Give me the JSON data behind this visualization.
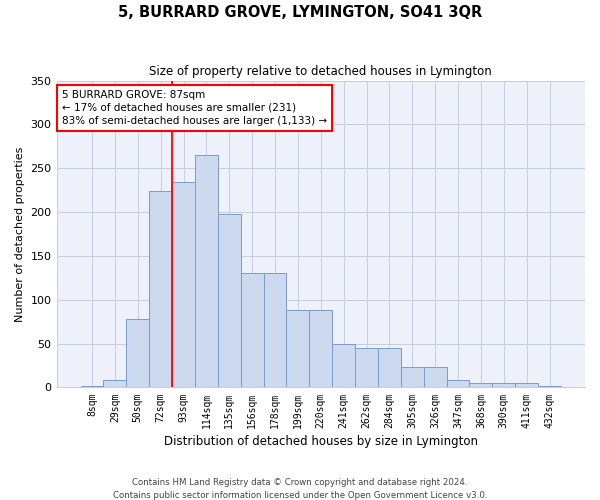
{
  "title": "5, BURRARD GROVE, LYMINGTON, SO41 3QR",
  "subtitle": "Size of property relative to detached houses in Lymington",
  "xlabel": "Distribution of detached houses by size in Lymington",
  "ylabel": "Number of detached properties",
  "bar_color": "#ccd9ee",
  "bar_edge_color": "#7a9cc8",
  "background_color": "#eef1fa",
  "grid_color": "#c5cde0",
  "categories": [
    "8sqm",
    "29sqm",
    "50sqm",
    "72sqm",
    "93sqm",
    "114sqm",
    "135sqm",
    "156sqm",
    "178sqm",
    "199sqm",
    "220sqm",
    "241sqm",
    "262sqm",
    "284sqm",
    "305sqm",
    "326sqm",
    "347sqm",
    "368sqm",
    "390sqm",
    "411sqm",
    "432sqm"
  ],
  "values": [
    2,
    8,
    78,
    224,
    234,
    265,
    198,
    130,
    130,
    88,
    88,
    50,
    45,
    45,
    23,
    23,
    9,
    5,
    5,
    5,
    2
  ],
  "ylim": [
    0,
    350
  ],
  "yticks": [
    0,
    50,
    100,
    150,
    200,
    250,
    300,
    350
  ],
  "property_line_x": 3.5,
  "annotation_text": "5 BURRARD GROVE: 87sqm\n← 17% of detached houses are smaller (231)\n83% of semi-detached houses are larger (1,133) →",
  "footer1": "Contains HM Land Registry data © Crown copyright and database right 2024.",
  "footer2": "Contains public sector information licensed under the Open Government Licence v3.0."
}
